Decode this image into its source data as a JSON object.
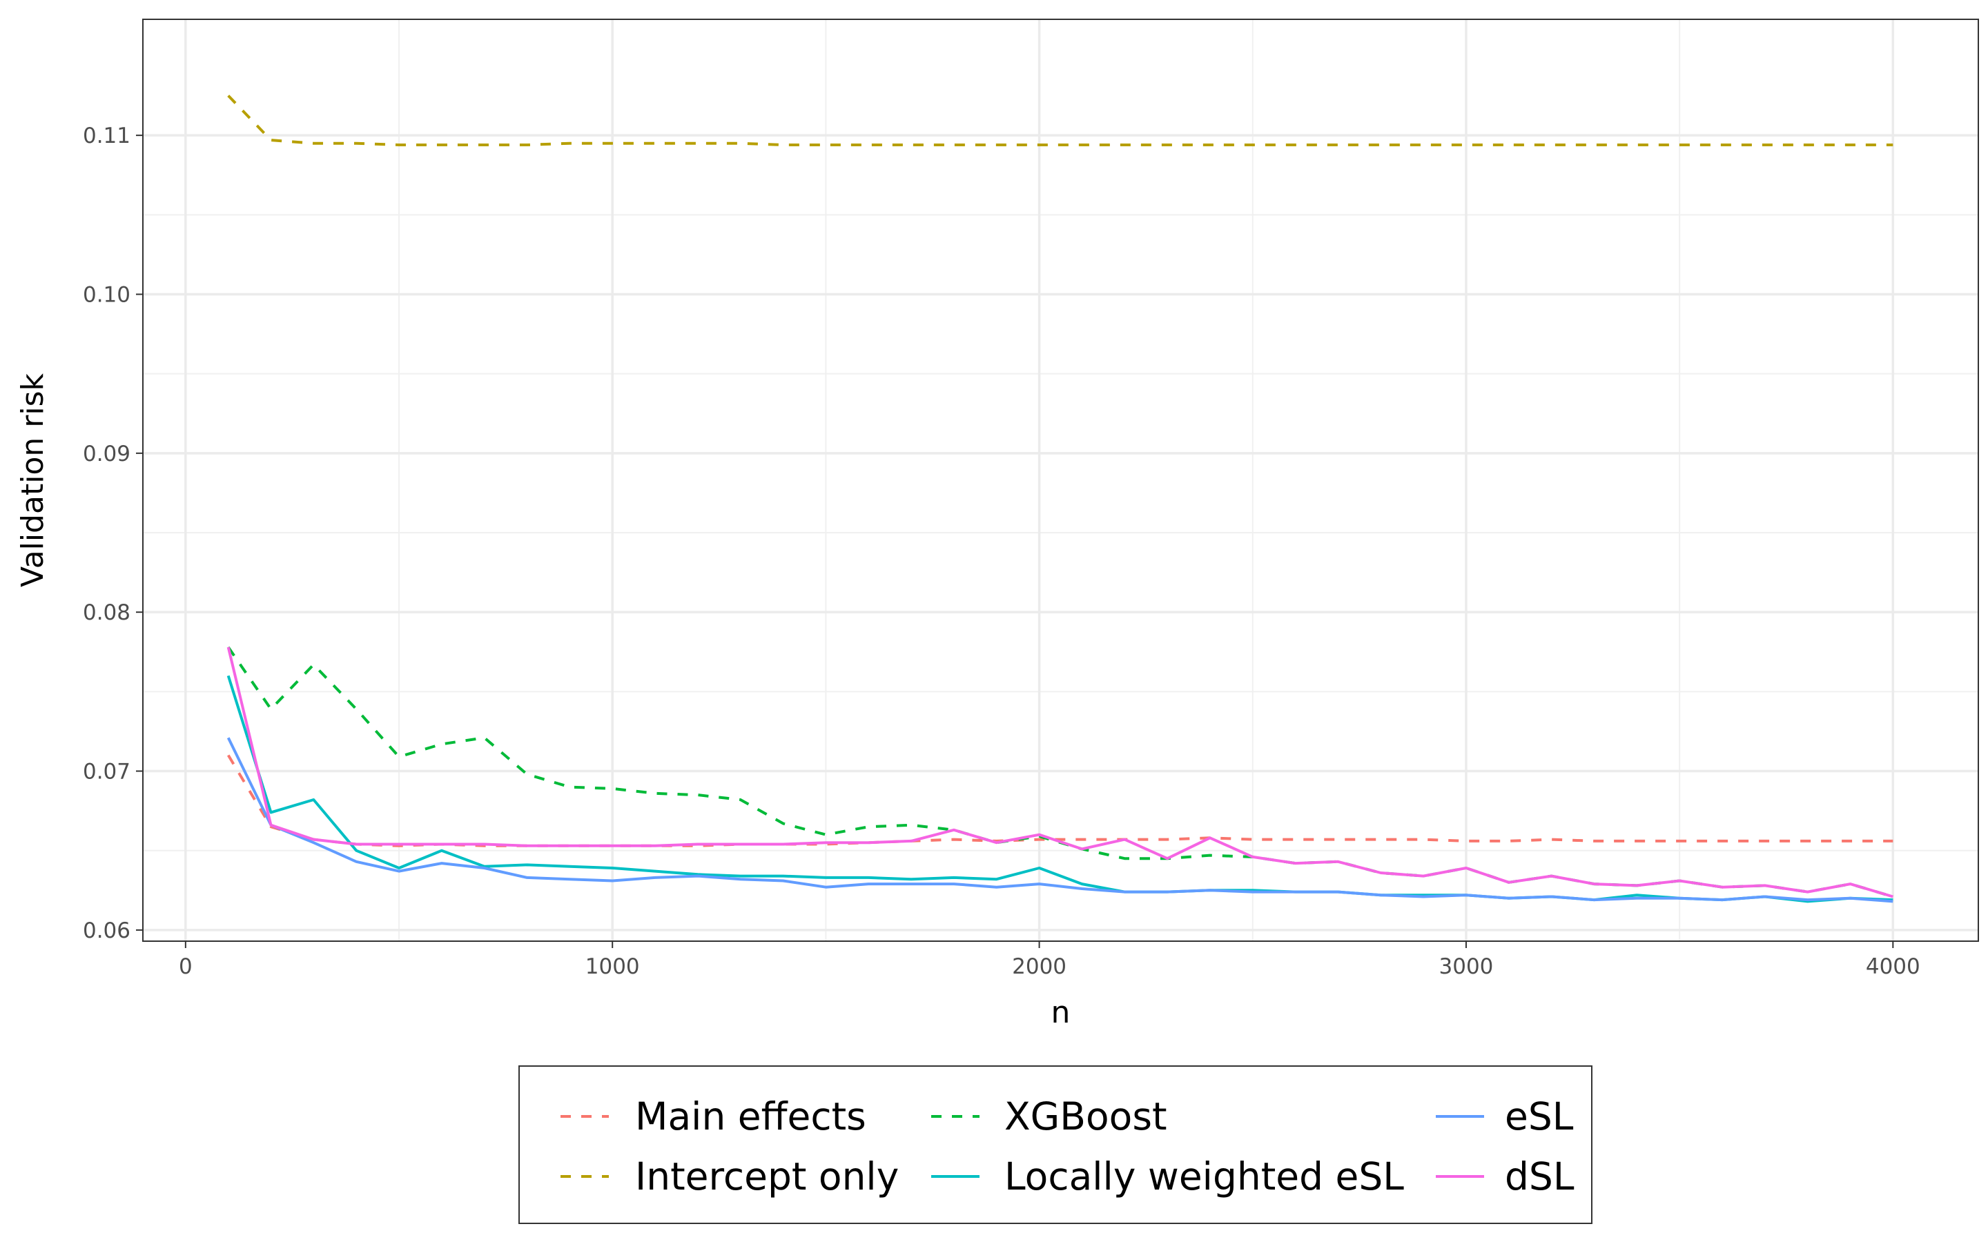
{
  "chart_data": {
    "type": "line",
    "xlabel": "n",
    "ylabel": "Validation risk",
    "xlim": [
      -100,
      4200
    ],
    "ylim": [
      0.0593,
      0.1173
    ],
    "xticks": [
      0,
      1000,
      2000,
      3000,
      4000
    ],
    "xtick_labels": [
      "0",
      "1000",
      "2000",
      "3000",
      "4000"
    ],
    "yticks": [
      0.06,
      0.07,
      0.08,
      0.09,
      0.1,
      0.11
    ],
    "ytick_labels": [
      "0.06",
      "0.07",
      "0.08",
      "0.09",
      "0.10",
      "0.11"
    ],
    "grid": true,
    "legend_position": "bottom",
    "x": [
      100,
      200,
      300,
      400,
      500,
      600,
      700,
      800,
      900,
      1000,
      1100,
      1200,
      1300,
      1400,
      1500,
      1600,
      1700,
      1800,
      1900,
      2000,
      2100,
      2200,
      2300,
      2400,
      2500,
      2600,
      2700,
      2800,
      2900,
      3000,
      3100,
      3200,
      3300,
      3400,
      3500,
      3600,
      3700,
      3800,
      3900,
      4000
    ],
    "series": [
      {
        "name": "Main effects",
        "color": "#F8766D",
        "dash": "dashed",
        "values": [
          0.071,
          0.0665,
          0.0657,
          0.0654,
          0.0653,
          0.0654,
          0.0653,
          0.0653,
          0.0653,
          0.0653,
          0.0653,
          0.0653,
          0.0654,
          0.0654,
          0.0654,
          0.0655,
          0.0656,
          0.0657,
          0.0656,
          0.0657,
          0.0657,
          0.0657,
          0.0657,
          0.0658,
          0.0657,
          0.0657,
          0.0657,
          0.0657,
          0.0657,
          0.0656,
          0.0656,
          0.0657,
          0.0656,
          0.0656,
          0.0656,
          0.0656,
          0.0656,
          0.0656,
          0.0656,
          0.0656
        ]
      },
      {
        "name": "Intercept only",
        "color": "#B79F00",
        "dash": "dashed",
        "values": [
          0.1125,
          0.1097,
          0.1095,
          0.1095,
          0.1094,
          0.1094,
          0.1094,
          0.1094,
          0.1095,
          0.1095,
          0.1095,
          0.1095,
          0.1095,
          0.1094,
          0.1094,
          0.1094,
          0.1094,
          0.1094,
          0.1094,
          0.1094,
          0.1094,
          0.1094,
          0.1094,
          0.1094,
          0.1094,
          0.1094,
          0.1094,
          0.1094,
          0.1094,
          0.1094,
          0.1094,
          0.1094,
          0.1094,
          0.1094,
          0.1094,
          0.1094,
          0.1094,
          0.1094,
          0.1094,
          0.1094
        ]
      },
      {
        "name": "XGBoost",
        "color": "#00BA38",
        "dash": "dashed",
        "values": [
          0.0778,
          0.0739,
          0.0767,
          0.0739,
          0.0709,
          0.0717,
          0.0721,
          0.0698,
          0.069,
          0.0689,
          0.0686,
          0.0685,
          0.0682,
          0.0667,
          0.066,
          0.0665,
          0.0666,
          0.0663,
          0.0655,
          0.0659,
          0.0651,
          0.0645,
          0.0645,
          0.0647,
          0.0646,
          0.0642,
          0.0643,
          0.0636,
          0.0634,
          0.0639,
          0.063,
          0.0634,
          0.0629,
          0.0628,
          0.0631,
          0.0627,
          0.0628,
          0.0624,
          0.0629,
          0.0621
        ]
      },
      {
        "name": "Locally weighted eSL",
        "color": "#00BFC4",
        "dash": "solid",
        "values": [
          0.076,
          0.0674,
          0.0682,
          0.065,
          0.0639,
          0.065,
          0.064,
          0.0641,
          0.064,
          0.0639,
          0.0637,
          0.0635,
          0.0634,
          0.0634,
          0.0633,
          0.0633,
          0.0632,
          0.0633,
          0.0632,
          0.0639,
          0.0629,
          0.0624,
          0.0624,
          0.0625,
          0.0625,
          0.0624,
          0.0624,
          0.0622,
          0.0622,
          0.0622,
          0.062,
          0.0621,
          0.0619,
          0.0622,
          0.062,
          0.0619,
          0.0621,
          0.0618,
          0.062,
          0.0619
        ]
      },
      {
        "name": "eSL",
        "color": "#619CFF",
        "dash": "solid",
        "values": [
          0.0721,
          0.0666,
          0.0655,
          0.0643,
          0.0637,
          0.0642,
          0.0639,
          0.0633,
          0.0632,
          0.0631,
          0.0633,
          0.0634,
          0.0632,
          0.0631,
          0.0627,
          0.0629,
          0.0629,
          0.0629,
          0.0627,
          0.0629,
          0.0626,
          0.0624,
          0.0624,
          0.0625,
          0.0624,
          0.0624,
          0.0624,
          0.0622,
          0.0621,
          0.0622,
          0.062,
          0.0621,
          0.0619,
          0.062,
          0.062,
          0.0619,
          0.0621,
          0.0619,
          0.062,
          0.0618
        ]
      },
      {
        "name": "dSL",
        "color": "#F564E3",
        "dash": "solid",
        "values": [
          0.0778,
          0.0666,
          0.0657,
          0.0654,
          0.0654,
          0.0654,
          0.0654,
          0.0653,
          0.0653,
          0.0653,
          0.0653,
          0.0654,
          0.0654,
          0.0654,
          0.0655,
          0.0655,
          0.0656,
          0.0663,
          0.0655,
          0.066,
          0.0651,
          0.0657,
          0.0645,
          0.0658,
          0.0646,
          0.0642,
          0.0643,
          0.0636,
          0.0634,
          0.0639,
          0.063,
          0.0634,
          0.0629,
          0.0628,
          0.0631,
          0.0627,
          0.0628,
          0.0624,
          0.0629,
          0.0621
        ]
      }
    ]
  }
}
